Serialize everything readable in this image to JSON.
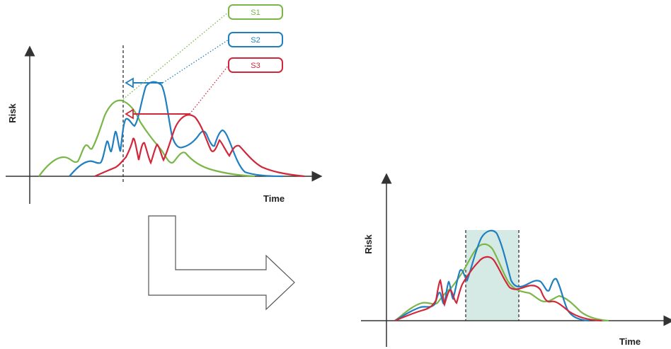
{
  "colors": {
    "s1": "#7ab648",
    "s2": "#1f7fc0",
    "s3": "#d0283a",
    "axis": "#333333",
    "arrow": "#555555",
    "window_fill": "#cfe6e1"
  },
  "tags": {
    "s1": "S1",
    "s2": "S2",
    "s3": "S3"
  },
  "left_chart": {
    "ylabel": "Risk",
    "xlabel": "Time"
  },
  "right_chart": {
    "ylabel": "Risk",
    "xlabel": "Time"
  },
  "transition": {
    "icon": "bent-arrow-icon"
  }
}
